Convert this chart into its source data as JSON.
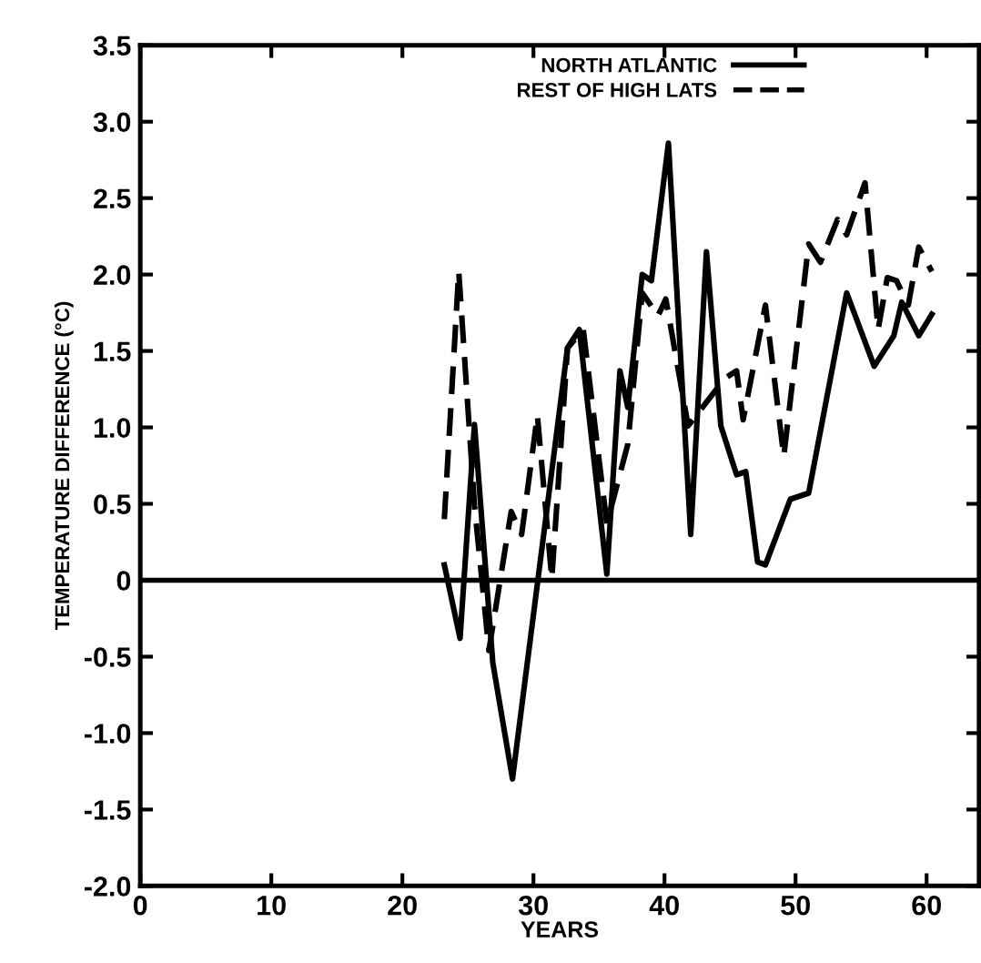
{
  "chart_data": {
    "type": "line",
    "xlabel": "YEARS",
    "ylabel": "TEMPERATURE DIFFERENCE (°C)",
    "xlim": [
      0,
      64
    ],
    "ylim": [
      -2.0,
      3.5
    ],
    "xticks": [
      0,
      10,
      20,
      30,
      40,
      50,
      60
    ],
    "yticks": [
      {
        "value": -2.0,
        "label": "-2.0"
      },
      {
        "value": -1.5,
        "label": "-1.5"
      },
      {
        "value": -1.0,
        "label": "-1.0"
      },
      {
        "value": -0.5,
        "label": "-0.5"
      },
      {
        "value": 0,
        "label": "0"
      },
      {
        "value": 0.5,
        "label": "0.5"
      },
      {
        "value": 1.0,
        "label": "1.0"
      },
      {
        "value": 1.5,
        "label": "1.5"
      },
      {
        "value": 2.0,
        "label": "2.0"
      },
      {
        "value": 2.5,
        "label": "2.5"
      },
      {
        "value": 3.0,
        "label": "3.0"
      },
      {
        "value": 3.5,
        "label": "3.5"
      }
    ],
    "grid": false,
    "legend": "top",
    "ref_lines": [
      {
        "axis": "y",
        "value": 0,
        "color": "#000000"
      }
    ],
    "series": [
      {
        "name": "NORTH ATLANTIC",
        "color": "#000000",
        "line_style": "solid",
        "x": [
          23.2,
          24.4,
          25.5,
          26.9,
          28.4,
          32.6,
          33.5,
          35.6,
          36.6,
          37.2,
          38.3,
          39,
          40.3,
          42,
          43.2,
          44.3,
          45.5,
          46.2,
          47.1,
          47.7,
          49.6,
          51,
          53.9,
          56,
          57.5,
          58.1,
          59.4,
          60.4
        ],
        "values": [
          0.1,
          -0.38,
          1.02,
          -0.54,
          -1.3,
          1.52,
          1.64,
          0.04,
          1.37,
          1.13,
          2.0,
          1.96,
          2.86,
          0.3,
          2.15,
          1.01,
          0.69,
          0.71,
          0.12,
          0.1,
          0.53,
          0.57,
          1.88,
          1.4,
          1.6,
          1.82,
          1.6,
          1.74
        ]
      },
      {
        "name": "REST OF HIGH LATS",
        "color": "#000000",
        "line_style": "dashed",
        "x": [
          23.2,
          24.3,
          25.5,
          26.6,
          28.3,
          29.1,
          30.3,
          31.4,
          32.6,
          33.8,
          35.6,
          37.2,
          38.3,
          39.5,
          40.1,
          41.8,
          44.6,
          45.5,
          46,
          47.7,
          49.1,
          51,
          51.9,
          53.2,
          53.9,
          55.3,
          56.3,
          57,
          57.7,
          58.6,
          59.4,
          60.4
        ],
        "values": [
          0.4,
          2.02,
          0.49,
          -0.46,
          0.45,
          0.3,
          1.08,
          0.01,
          1.52,
          1.64,
          0.37,
          0.89,
          1.88,
          1.73,
          1.84,
          1.01,
          1.32,
          1.37,
          1.05,
          1.8,
          0.81,
          2.2,
          2.08,
          2.36,
          2.26,
          2.6,
          1.64,
          1.98,
          1.96,
          1.8,
          2.18,
          2.02
        ]
      }
    ]
  }
}
